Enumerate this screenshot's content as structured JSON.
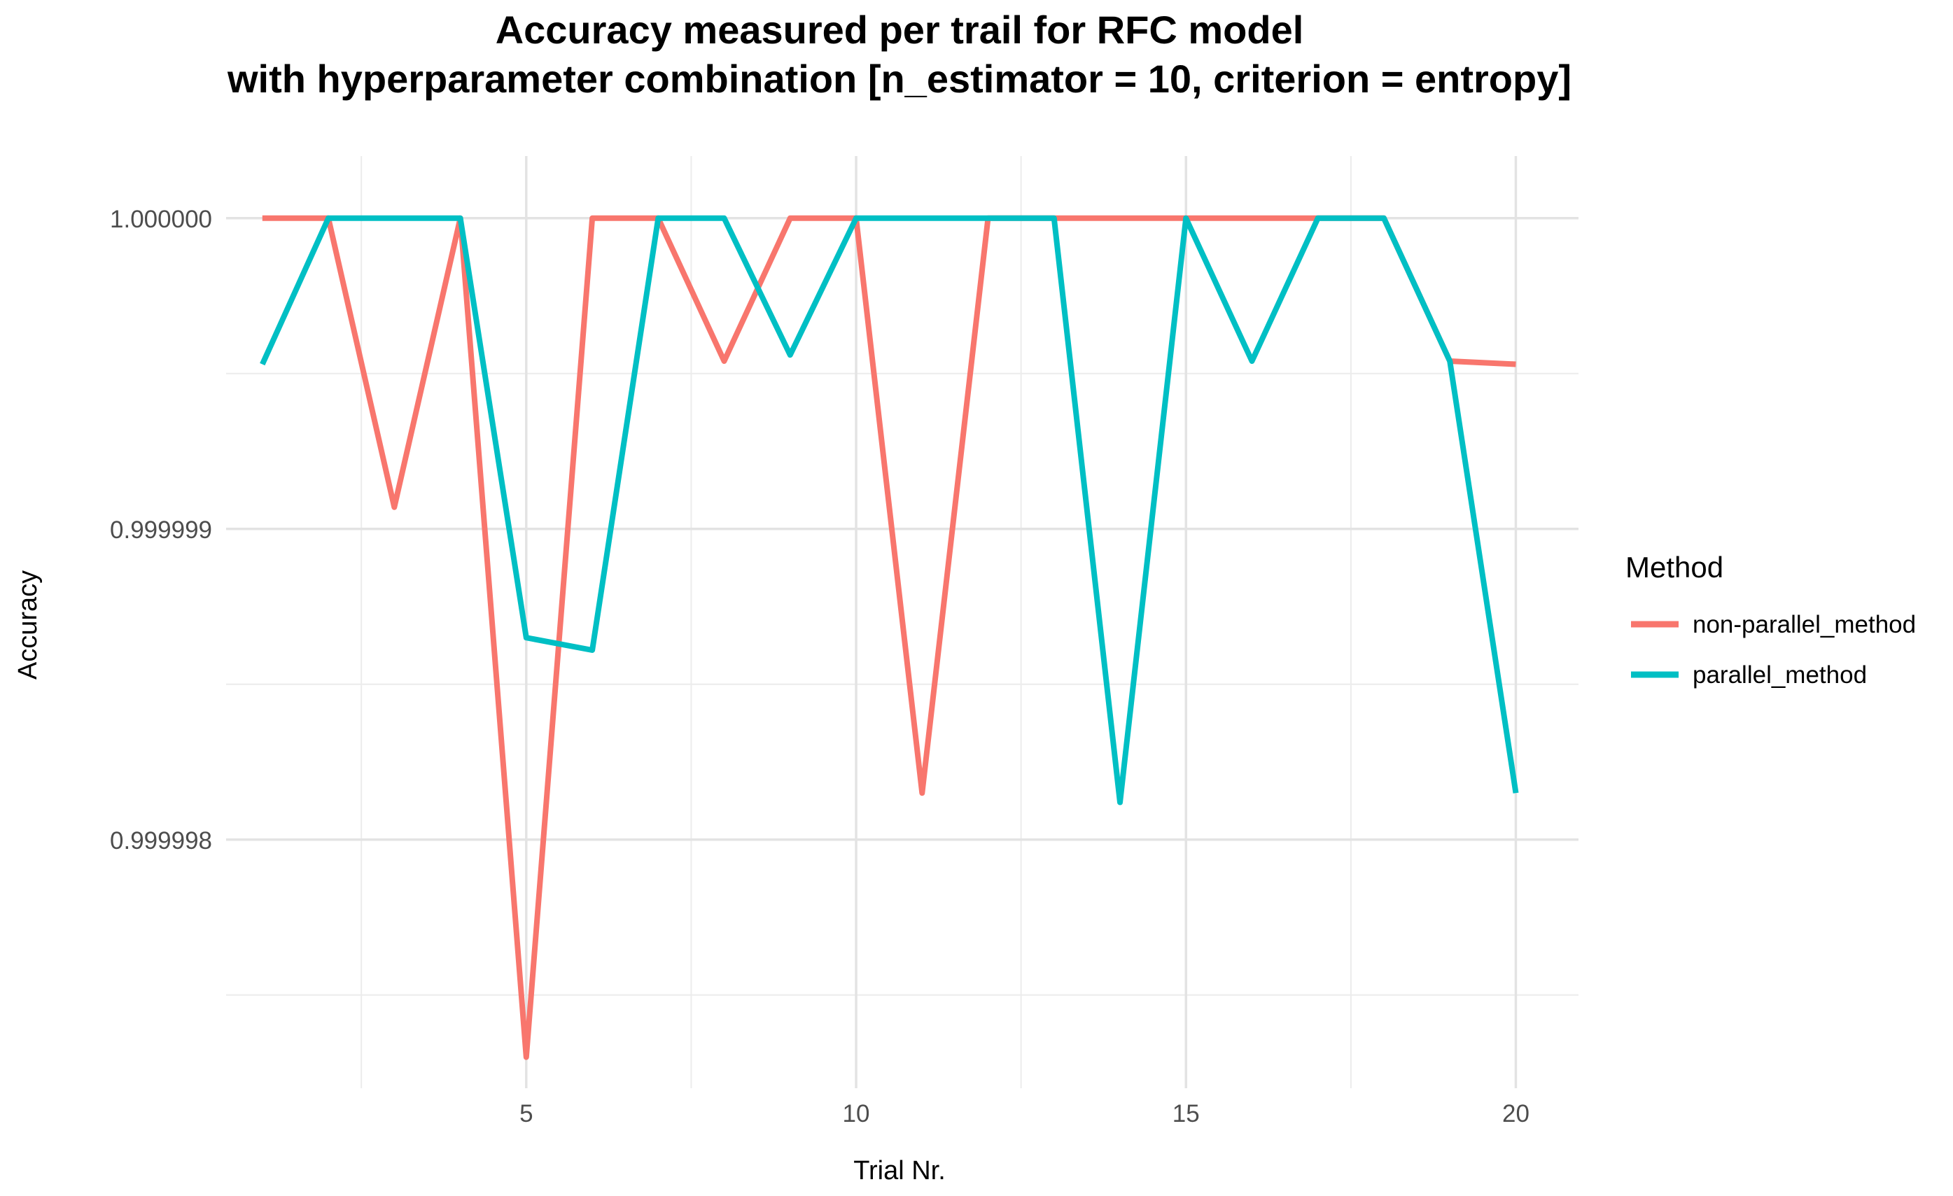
{
  "chart_data": {
    "type": "line",
    "title_line1": "Accuracy measured per trail for RFC model",
    "title_line2": "with hyperparameter combination [n_estimator = 10, criterion = entropy]",
    "xlabel": "Trial Nr.",
    "ylabel": "Accuracy",
    "xlim": [
      0.45,
      20.95
    ],
    "ylim": [
      0.9999972,
      1.0000002
    ],
    "x_ticks": [
      5,
      10,
      15,
      20
    ],
    "x_tick_labels": [
      "5",
      "10",
      "15",
      "20"
    ],
    "y_ticks": [
      0.999998,
      0.999999,
      1.0
    ],
    "y_tick_labels": [
      "0.999998",
      "0.999999",
      "1.000000"
    ],
    "x_minor_ticks": [
      2.5,
      7.5,
      12.5,
      17.5
    ],
    "y_minor_ticks": [
      0.9999975,
      0.9999985,
      0.9999995
    ],
    "grid": true,
    "legend": {
      "title": "Method",
      "position": "right",
      "entries": [
        "non-parallel_method",
        "parallel_method"
      ]
    },
    "x": [
      1,
      2,
      3,
      4,
      5,
      6,
      7,
      8,
      9,
      10,
      11,
      12,
      13,
      14,
      15,
      16,
      17,
      18,
      19,
      20
    ],
    "series": [
      {
        "name": "non-parallel_method",
        "color": "#F8766D",
        "values": [
          1.0,
          1.0,
          0.99999907,
          1.0,
          0.9999973,
          1.0,
          1.0,
          0.99999954,
          1.0,
          1.0,
          0.99999815,
          1.0,
          1.0,
          1.0,
          1.0,
          1.0,
          1.0,
          1.0,
          0.99999954,
          0.99999953
        ]
      },
      {
        "name": "parallel_method",
        "color": "#00BFC4",
        "values": [
          0.99999953,
          1.0,
          1.0,
          1.0,
          0.99999865,
          0.99999861,
          1.0,
          1.0,
          0.99999956,
          1.0,
          1.0,
          1.0,
          1.0,
          0.99999812,
          1.0,
          0.99999954,
          1.0,
          1.0,
          0.99999954,
          0.99999815
        ]
      }
    ]
  }
}
